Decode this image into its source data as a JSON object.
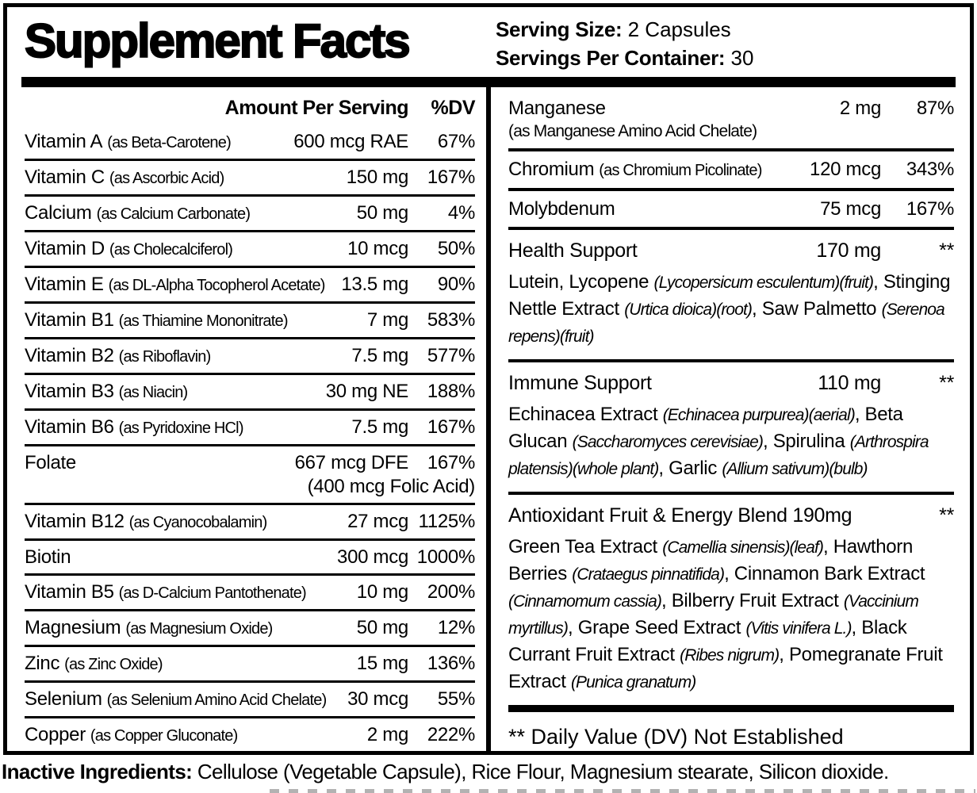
{
  "colors": {
    "ink": "#000000",
    "paper": "#ffffff"
  },
  "header": {
    "title": "Supplement Facts",
    "serving_size_label": "Serving Size:",
    "serving_size_value": "2 Capsules",
    "servings_per_container_label": "Servings Per Container:",
    "servings_per_container_value": "30"
  },
  "left_column": {
    "amount_header": "Amount Per Serving",
    "dv_header": "%DV",
    "rows": [
      {
        "name": "Vitamin A",
        "form": "(as Beta-Carotene)",
        "amount": "600 mcg RAE",
        "dv": "67%"
      },
      {
        "name": "Vitamin C",
        "form": "(as Ascorbic Acid)",
        "amount": "150 mg",
        "dv": "167%"
      },
      {
        "name": "Calcium",
        "form": "(as Calcium Carbonate)",
        "amount": "50 mg",
        "dv": "4%"
      },
      {
        "name": "Vitamin D",
        "form": "(as Cholecalciferol)",
        "amount": "10 mcg",
        "dv": "50%"
      },
      {
        "name": "Vitamin E",
        "form": "(as DL-Alpha Tocopherol Acetate)",
        "amount": "13.5 mg",
        "dv": "90%"
      },
      {
        "name": "Vitamin B1",
        "form": "(as Thiamine Mononitrate)",
        "amount": "7 mg",
        "dv": "583%"
      },
      {
        "name": "Vitamin B2",
        "form": "(as Riboflavin)",
        "amount": "7.5 mg",
        "dv": "577%"
      },
      {
        "name": "Vitamin B3",
        "form": "(as Niacin)",
        "amount": "30 mg NE",
        "dv": "188%"
      },
      {
        "name": "Vitamin B6",
        "form": "(as Pyridoxine HCl)",
        "amount": "7.5 mg",
        "dv": "167%"
      },
      {
        "name": "Folate",
        "form": "",
        "amount": "667 mcg DFE",
        "amount_line2": "(400 mcg Folic Acid)",
        "dv": "167%"
      },
      {
        "name": "Vitamin B12",
        "form": "(as Cyanocobalamin)",
        "amount": "27 mcg",
        "dv": "1125%"
      },
      {
        "name": "Biotin",
        "form": "",
        "amount": "300 mcg",
        "dv": "1000%"
      },
      {
        "name": "Vitamin B5",
        "form": "(as D-Calcium Pantothenate)",
        "amount": "10 mg",
        "dv": "200%"
      },
      {
        "name": "Magnesium",
        "form": "(as Magnesium Oxide)",
        "amount": "50 mg",
        "dv": "12%"
      },
      {
        "name": "Zinc",
        "form": "(as Zinc Oxide)",
        "amount": "15 mg",
        "dv": "136%"
      },
      {
        "name": "Selenium",
        "form": "(as Selenium Amino Acid Chelate)",
        "amount": "30 mcg",
        "dv": "55%"
      },
      {
        "name": "Copper",
        "form": "(as Copper Gluconate)",
        "amount": "2 mg",
        "dv": "222%"
      }
    ]
  },
  "right_column": {
    "rows": [
      {
        "name": "Manganese",
        "form_line2": "(as Manganese Amino Acid Chelate)",
        "amount": "2 mg",
        "dv": "87%"
      },
      {
        "name": "Chromium",
        "form": "(as Chromium Picolinate)",
        "amount": "120 mcg",
        "dv": "343%"
      },
      {
        "name": "Molybdenum",
        "form": "",
        "amount": "75 mcg",
        "dv": "167%"
      }
    ],
    "blends": [
      {
        "title": "Health Support",
        "amount": "170 mg",
        "dv": "**",
        "segments": [
          {
            "t": "Lutein, Lycopene ",
            "i": false
          },
          {
            "t": "(Lycopersicum esculentum)(fruit)",
            "i": true
          },
          {
            "t": ", Stinging Nettle Extract ",
            "i": false
          },
          {
            "t": "(Urtica dioica)(root)",
            "i": true
          },
          {
            "t": ", Saw Palmetto ",
            "i": false
          },
          {
            "t": "(Serenoa repens)(fruit)",
            "i": true
          }
        ]
      },
      {
        "title": "Immune Support",
        "amount": "110 mg",
        "dv": "**",
        "segments": [
          {
            "t": "Echinacea Extract ",
            "i": false
          },
          {
            "t": "(Echinacea purpurea)(aerial)",
            "i": true
          },
          {
            "t": ", Beta Glucan ",
            "i": false
          },
          {
            "t": "(Saccharomyces cerevisiae)",
            "i": true
          },
          {
            "t": ", Spirulina ",
            "i": false
          },
          {
            "t": "(Arthrospira platensis)(whole plant)",
            "i": true
          },
          {
            "t": ", Garlic ",
            "i": false
          },
          {
            "t": "(Allium sativum)(bulb)",
            "i": true
          }
        ]
      },
      {
        "title": "Antioxidant Fruit & Energy Blend 190mg",
        "amount": "",
        "dv": "**",
        "segments": [
          {
            "t": "Green Tea Extract ",
            "i": false
          },
          {
            "t": "(Camellia sinensis)(leaf)",
            "i": true
          },
          {
            "t": ", Hawthorn Berries ",
            "i": false
          },
          {
            "t": "(Crataegus pinnatifida)",
            "i": true
          },
          {
            "t": ", Cinnamon Bark Extract ",
            "i": false
          },
          {
            "t": "(Cinnamomum cassia)",
            "i": true
          },
          {
            "t": ", Bilberry Fruit Extract ",
            "i": false
          },
          {
            "t": "(Vaccinium myrtillus)",
            "i": true
          },
          {
            "t": ", Grape Seed Extract ",
            "i": false
          },
          {
            "t": "(Vitis vinifera L.)",
            "i": true
          },
          {
            "t": ", Black Currant Fruit Extract ",
            "i": false
          },
          {
            "t": "(Ribes nigrum)",
            "i": true
          },
          {
            "t": ", Pomegranate Fruit Extract ",
            "i": false
          },
          {
            "t": "(Punica granatum)",
            "i": true
          }
        ]
      }
    ],
    "footnote": "** Daily Value (DV) Not Established"
  },
  "inactive": {
    "label": "Inactive Ingredients:",
    "text": " Cellulose (Vegetable Capsule), Rice Flour, Magnesium stearate, Silicon dioxide."
  }
}
